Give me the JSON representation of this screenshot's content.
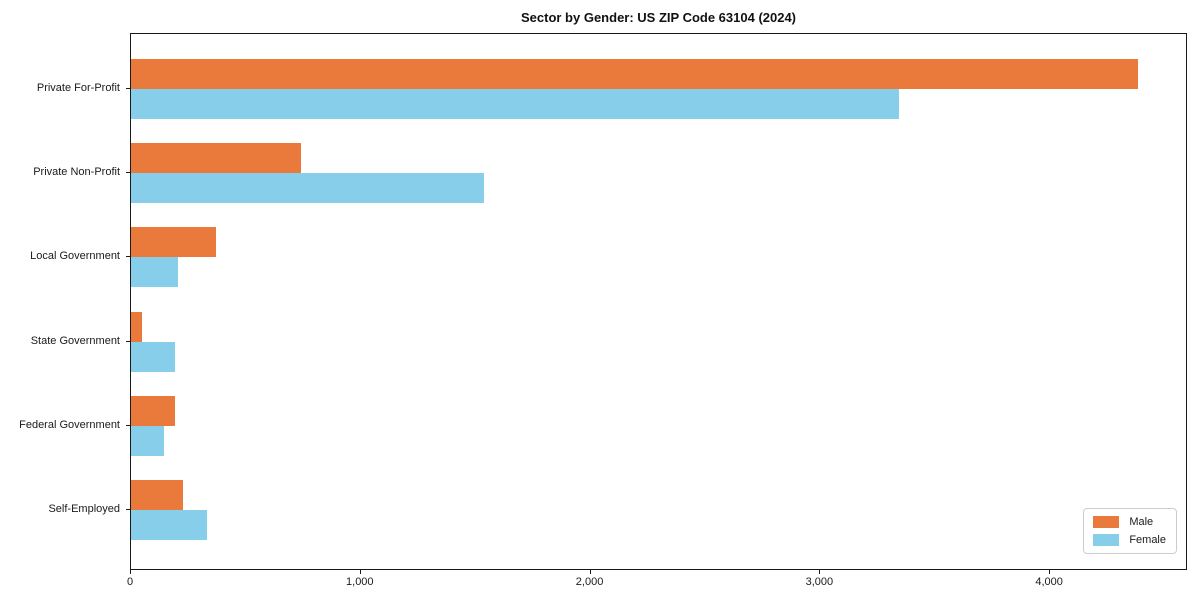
{
  "title": "Sector by Gender: US ZIP Code 63104 (2024)",
  "colors": {
    "male": "#EA7A3C",
    "female": "#87CEEB",
    "axis": "#1a1a1a",
    "legend_border": "#cccccc",
    "background": "#ffffff"
  },
  "legend": {
    "items": [
      {
        "label": "Male",
        "color": "#EA7A3C"
      },
      {
        "label": "Female",
        "color": "#87CEEB"
      }
    ],
    "position": "lower right"
  },
  "chart_data": {
    "type": "bar",
    "orientation": "horizontal",
    "title": "Sector by Gender: US ZIP Code 63104 (2024)",
    "categories": [
      "Private For-Profit",
      "Private Non-Profit",
      "Local Government",
      "State Government",
      "Federal Government",
      "Self-Employed"
    ],
    "series": [
      {
        "name": "Male",
        "color": "#EA7A3C",
        "values": [
          4390,
          740,
          370,
          50,
          190,
          225
        ]
      },
      {
        "name": "Female",
        "color": "#87CEEB",
        "values": [
          3350,
          1540,
          205,
          190,
          145,
          330
        ]
      }
    ],
    "xlabel": "",
    "ylabel": "",
    "xlim": [
      0,
      4600
    ],
    "xticks": [
      0,
      1000,
      2000,
      3000,
      4000
    ],
    "xtick_labels": [
      "0",
      "1,000",
      "2,000",
      "3,000",
      "4,000"
    ],
    "grid": false,
    "legend_position": "lower right"
  }
}
